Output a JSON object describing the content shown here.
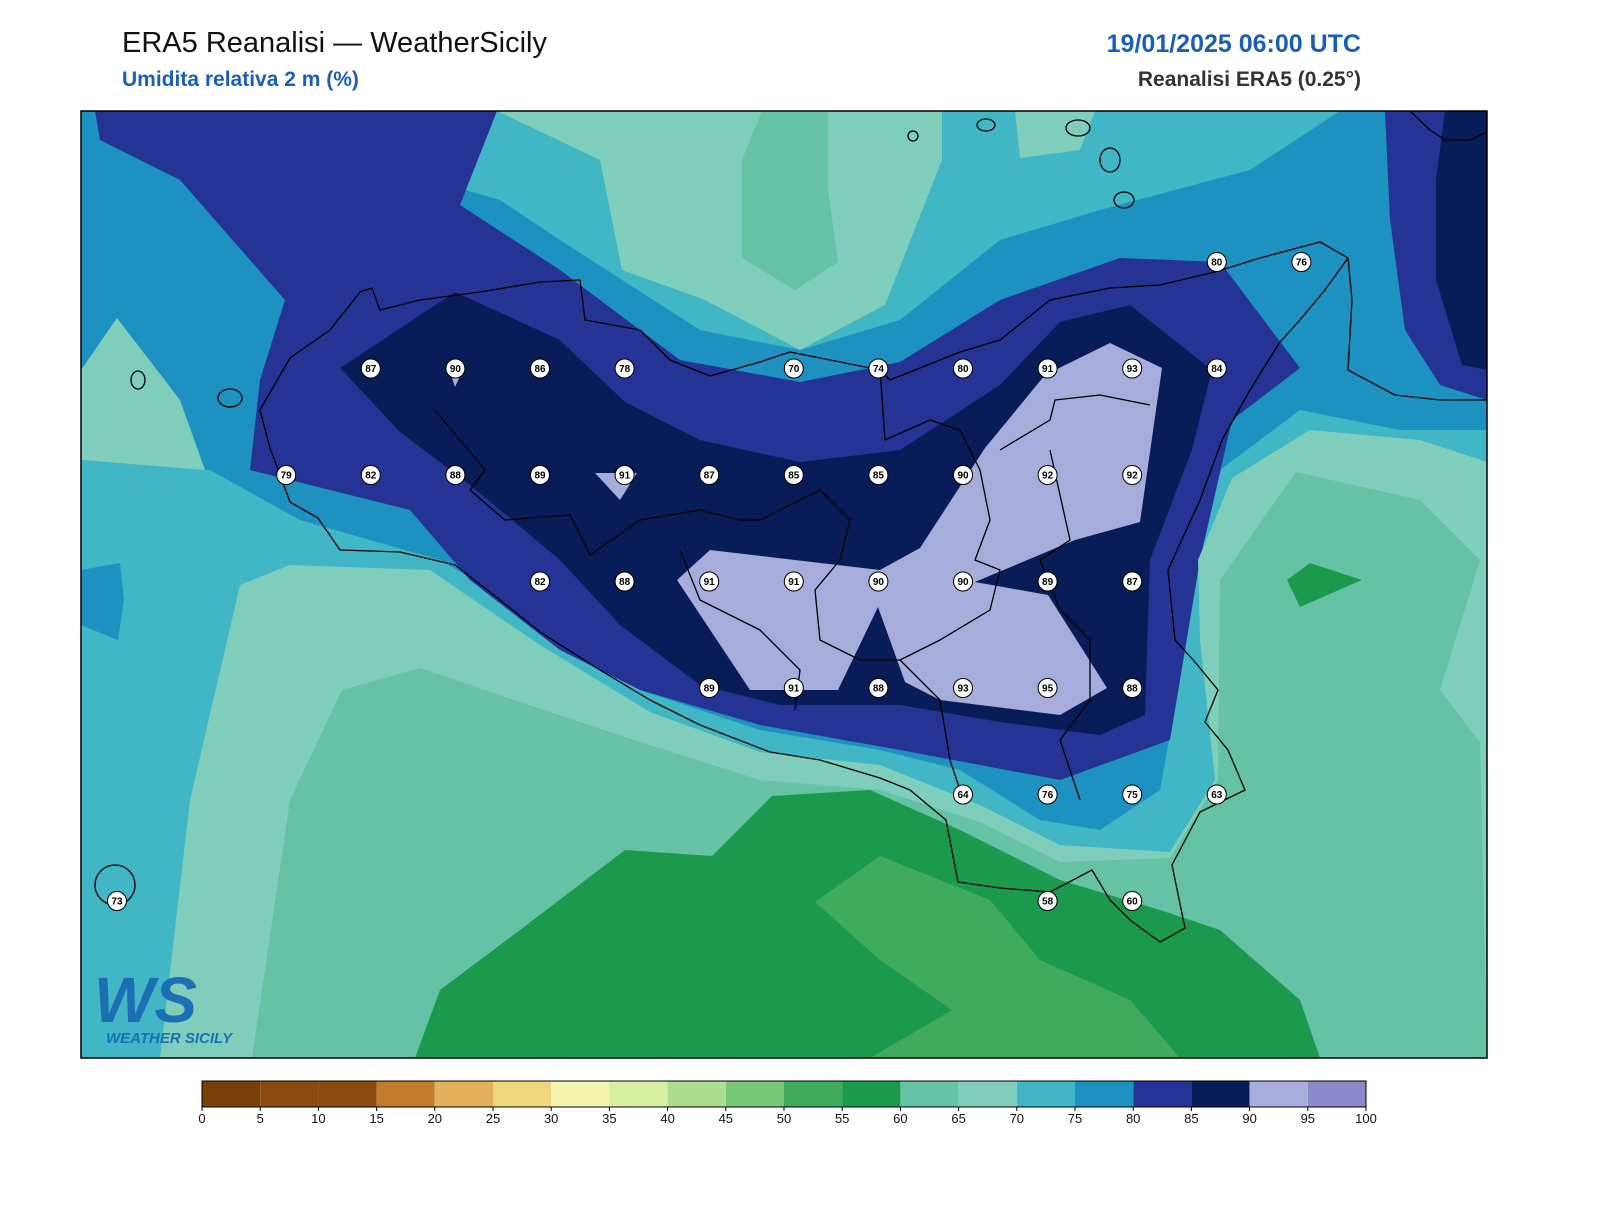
{
  "header": {
    "title": "ERA5 Reanalisi — WeatherSicily",
    "subtitle": "Umidita relativa 2 m (%)",
    "datetime": "19/01/2025 06:00 UTC",
    "source": "Reanalisi ERA5 (0.25°)"
  },
  "map": {
    "stations": [
      80,
      76,
      87,
      90,
      86,
      78,
      70,
      74,
      80,
      91,
      93,
      84,
      79,
      82,
      88,
      89,
      91,
      87,
      85,
      85,
      90,
      92,
      92,
      82,
      88,
      91,
      91,
      90,
      90,
      89,
      87,
      89,
      91,
      88,
      93,
      95,
      88,
      64,
      76,
      75,
      63,
      73,
      58,
      60
    ]
  },
  "logo": {
    "mark": "WS",
    "name": "WEATHER SICILY"
  },
  "colorbar": {
    "ticks": [
      0,
      5,
      10,
      15,
      20,
      25,
      30,
      35,
      40,
      45,
      50,
      55,
      60,
      65,
      70,
      75,
      80,
      85,
      90,
      95,
      100
    ],
    "colors": [
      "#7a3f07",
      "#8b4a10",
      "#8b4a10",
      "#c17d2c",
      "#e0b05a",
      "#f0d67d",
      "#f5f5b0",
      "#d9f0a3",
      "#addd8e",
      "#78c679",
      "#41ab5d",
      "#1b9a4e",
      "#66c2a4",
      "#7fcdbb",
      "#41b6c4",
      "#1d91c0",
      "#253494",
      "#081d58",
      "#a6addb",
      "#8c89c8"
    ]
  }
}
